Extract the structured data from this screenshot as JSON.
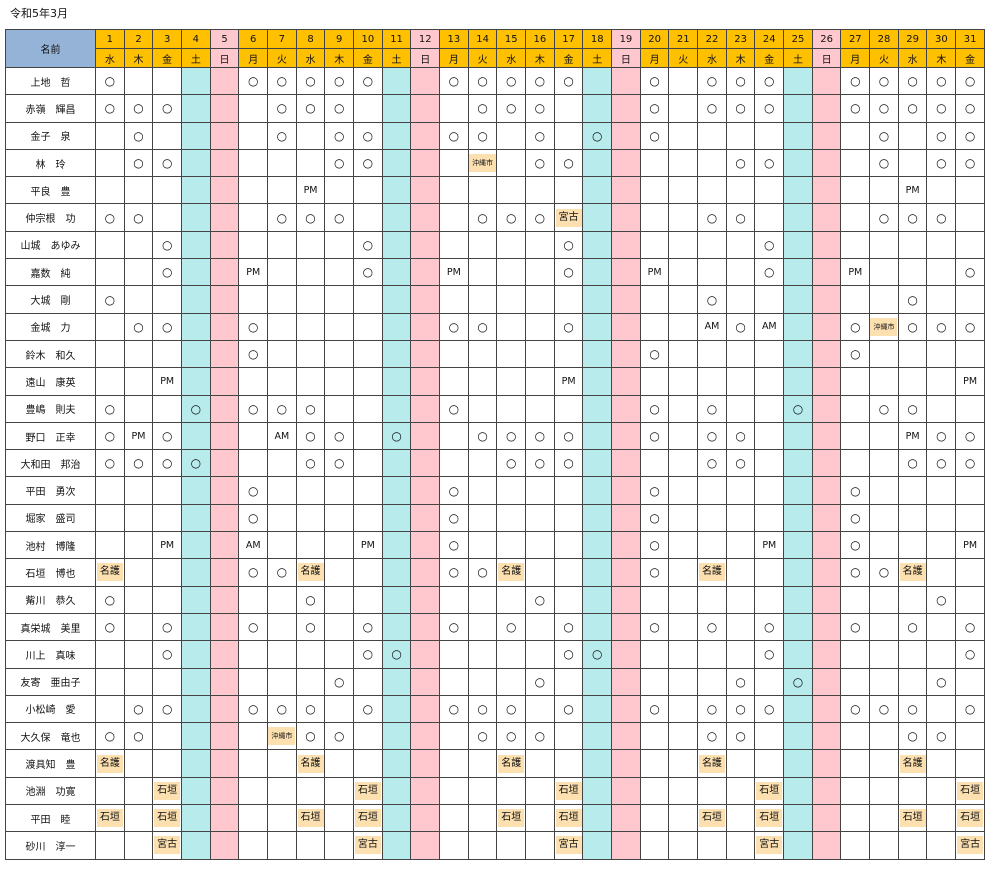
{
  "title": "令和5年3月",
  "name_header": "名前",
  "days": [
    "1",
    "2",
    "3",
    "4",
    "5",
    "6",
    "7",
    "8",
    "9",
    "10",
    "11",
    "12",
    "13",
    "14",
    "15",
    "16",
    "17",
    "18",
    "19",
    "20",
    "21",
    "22",
    "23",
    "24",
    "25",
    "26",
    "27",
    "28",
    "29",
    "30",
    "31"
  ],
  "weekdays": [
    "水",
    "木",
    "金",
    "土",
    "日",
    "月",
    "火",
    "水",
    "木",
    "金",
    "土",
    "日",
    "月",
    "火",
    "水",
    "木",
    "金",
    "土",
    "日",
    "月",
    "火",
    "水",
    "木",
    "金",
    "土",
    "日",
    "月",
    "火",
    "水",
    "木",
    "金"
  ],
  "colors": {
    "saturday": "#b7ebec",
    "sunday": "#ffc7ce",
    "header": "#ffc000",
    "name_header": "#95b3d7",
    "tag": "#fde0b0"
  },
  "rows": [
    {
      "name": "上地　哲",
      "cells": [
        "○",
        "",
        "",
        "",
        "",
        "○",
        "○",
        "○",
        "○",
        "○",
        "",
        "",
        "○",
        "○",
        "○",
        "○",
        "○",
        "",
        "",
        "○",
        "",
        "○",
        "○",
        "○",
        "",
        "",
        "○",
        "○",
        "○",
        "○",
        "○"
      ]
    },
    {
      "name": "赤嶺　輝昌",
      "cells": [
        "○",
        "○",
        "○",
        "",
        "",
        "",
        "○",
        "○",
        "○",
        "",
        "",
        "",
        "",
        "○",
        "○",
        "○",
        "",
        "",
        "",
        "○",
        "",
        "○",
        "○",
        "○",
        "",
        "",
        "○",
        "○",
        "○",
        "○",
        "○"
      ]
    },
    {
      "name": "金子　泉",
      "cells": [
        "",
        "○",
        "",
        "",
        "",
        "",
        "○",
        "",
        "○",
        "○",
        "",
        "",
        "○",
        "○",
        "",
        "○",
        "",
        "○",
        "",
        "○",
        "",
        "",
        "",
        "",
        "",
        "",
        "",
        "○",
        "",
        "○",
        "○"
      ]
    },
    {
      "name": "林　玲",
      "cells": [
        "",
        "○",
        "○",
        "",
        "",
        "",
        "",
        "",
        "○",
        "○",
        "",
        "",
        "",
        "沖縄市",
        "",
        "○",
        "○",
        "",
        "",
        "",
        "",
        "",
        "○",
        "○",
        "",
        "",
        "",
        "○",
        "",
        "○",
        "○"
      ]
    },
    {
      "name": "平良　豊",
      "cells": [
        "",
        "",
        "",
        "",
        "",
        "",
        "",
        "PM",
        "",
        "",
        "",
        "",
        "",
        "",
        "",
        "",
        "",
        "",
        "",
        "",
        "",
        "",
        "",
        "",
        "",
        "",
        "",
        "",
        "PM",
        "",
        ""
      ]
    },
    {
      "name": "仲宗根　功",
      "cells": [
        "○",
        "○",
        "",
        "",
        "",
        "",
        "○",
        "○",
        "○",
        "",
        "",
        "",
        "",
        "○",
        "○",
        "○",
        "宮古",
        "",
        "",
        "",
        "",
        "○",
        "○",
        "",
        "",
        "",
        "",
        "○",
        "○",
        "○",
        ""
      ]
    },
    {
      "name": "山城　あゆみ",
      "cells": [
        "",
        "",
        "○",
        "",
        "",
        "",
        "",
        "",
        "",
        "○",
        "",
        "",
        "",
        "",
        "",
        "",
        "○",
        "",
        "",
        "",
        "",
        "",
        "",
        "○",
        "",
        "",
        "",
        "",
        "",
        "",
        ""
      ]
    },
    {
      "name": "嘉数　純",
      "cells": [
        "",
        "",
        "○",
        "",
        "",
        "PM",
        "",
        "",
        "",
        "○",
        "",
        "",
        "PM",
        "",
        "",
        "",
        "○",
        "",
        "",
        "PM",
        "",
        "",
        "",
        "○",
        "",
        "",
        "PM",
        "",
        "",
        "",
        "○"
      ]
    },
    {
      "name": "大城　剛",
      "cells": [
        "○",
        "",
        "",
        "",
        "",
        "",
        "",
        "",
        "",
        "",
        "",
        "",
        "",
        "",
        "",
        "",
        "",
        "",
        "",
        "",
        "",
        "○",
        "",
        "",
        "",
        "",
        "",
        "",
        "○",
        "",
        ""
      ]
    },
    {
      "name": "金城　力",
      "cells": [
        "",
        "○",
        "○",
        "",
        "",
        "○",
        "",
        "",
        "",
        "",
        "",
        "",
        "○",
        "○",
        "",
        "",
        "○",
        "",
        "",
        "",
        "",
        "AM",
        "○",
        "AM",
        "",
        "",
        "○",
        "沖縄市",
        "○",
        "○",
        "○"
      ]
    },
    {
      "name": "鈴木　和久",
      "cells": [
        "",
        "",
        "",
        "",
        "",
        "○",
        "",
        "",
        "",
        "",
        "",
        "",
        "",
        "",
        "",
        "",
        "",
        "",
        "",
        "○",
        "",
        "",
        "",
        "",
        "",
        "",
        "○",
        "",
        "",
        "",
        ""
      ]
    },
    {
      "name": "遠山　康英",
      "cells": [
        "",
        "",
        "PM",
        "",
        "",
        "",
        "",
        "",
        "",
        "",
        "",
        "",
        "",
        "",
        "",
        "",
        "PM",
        "",
        "",
        "",
        "",
        "",
        "",
        "",
        "",
        "",
        "",
        "",
        "",
        "",
        "PM"
      ]
    },
    {
      "name": "豊嶋　則夫",
      "cells": [
        "○",
        "",
        "",
        "○",
        "",
        "○",
        "○",
        "○",
        "",
        "",
        "",
        "",
        "○",
        "",
        "",
        "",
        "",
        "",
        "",
        "○",
        "",
        "○",
        "",
        "",
        "○",
        "",
        "",
        "○",
        "○",
        "",
        ""
      ]
    },
    {
      "name": "野口　正幸",
      "cells": [
        "○",
        "PM",
        "○",
        "",
        "",
        "",
        "AM",
        "○",
        "○",
        "",
        "○",
        "",
        "",
        "○",
        "○",
        "○",
        "○",
        "",
        "",
        "○",
        "",
        "○",
        "○",
        "",
        "",
        "",
        "",
        "",
        "PM",
        "○",
        "○"
      ]
    },
    {
      "name": "大和田　邦治",
      "cells": [
        "○",
        "○",
        "○",
        "○",
        "",
        "",
        "",
        "○",
        "○",
        "",
        "",
        "",
        "",
        "",
        "○",
        "○",
        "○",
        "",
        "",
        "",
        "",
        "○",
        "○",
        "",
        "",
        "",
        "",
        "",
        "○",
        "○",
        "○"
      ]
    },
    {
      "name": "平田　勇次",
      "cells": [
        "",
        "",
        "",
        "",
        "",
        "○",
        "",
        "",
        "",
        "",
        "",
        "",
        "○",
        "",
        "",
        "",
        "",
        "",
        "",
        "○",
        "",
        "",
        "",
        "",
        "",
        "",
        "○",
        "",
        "",
        "",
        ""
      ]
    },
    {
      "name": "堀家　盛司",
      "cells": [
        "",
        "",
        "",
        "",
        "",
        "○",
        "",
        "",
        "",
        "",
        "",
        "",
        "○",
        "",
        "",
        "",
        "",
        "",
        "",
        "○",
        "",
        "",
        "",
        "",
        "",
        "",
        "○",
        "",
        "",
        "",
        ""
      ]
    },
    {
      "name": "池村　博隆",
      "cells": [
        "",
        "",
        "PM",
        "",
        "",
        "AM",
        "",
        "",
        "",
        "PM",
        "",
        "",
        "○",
        "",
        "",
        "",
        "",
        "",
        "",
        "○",
        "",
        "",
        "",
        "PM",
        "",
        "",
        "○",
        "",
        "",
        "",
        "PM"
      ]
    },
    {
      "name": "石垣　博也",
      "cells": [
        "名護",
        "",
        "",
        "",
        "",
        "○",
        "○",
        "名護",
        "",
        "",
        "",
        "",
        "○",
        "○",
        "名護",
        "",
        "",
        "",
        "",
        "○",
        "",
        "名護",
        "",
        "",
        "",
        "",
        "○",
        "○",
        "名護",
        "",
        ""
      ]
    },
    {
      "name": "觜川　恭久",
      "cells": [
        "○",
        "",
        "",
        "",
        "",
        "",
        "",
        "○",
        "",
        "",
        "",
        "",
        "",
        "",
        "",
        "○",
        "",
        "",
        "",
        "",
        "",
        "",
        "",
        "",
        "",
        "",
        "",
        "",
        "",
        "○",
        ""
      ]
    },
    {
      "name": "真栄城　美里",
      "cells": [
        "○",
        "",
        "○",
        "",
        "",
        "○",
        "",
        "○",
        "",
        "○",
        "",
        "",
        "○",
        "",
        "○",
        "",
        "○",
        "",
        "",
        "○",
        "",
        "○",
        "",
        "○",
        "",
        "",
        "○",
        "",
        "○",
        "",
        "○"
      ]
    },
    {
      "name": "川上　真味",
      "cells": [
        "",
        "",
        "○",
        "",
        "",
        "",
        "",
        "",
        "",
        "○",
        "○",
        "",
        "",
        "",
        "",
        "",
        "○",
        "○",
        "",
        "",
        "",
        "",
        "",
        "○",
        "",
        "",
        "",
        "",
        "",
        "",
        "○"
      ]
    },
    {
      "name": "友寄　亜由子",
      "cells": [
        "",
        "",
        "",
        "",
        "",
        "",
        "",
        "",
        "○",
        "",
        "",
        "",
        "",
        "",
        "",
        "○",
        "",
        "",
        "",
        "",
        "",
        "",
        "○",
        "",
        "○",
        "",
        "",
        "",
        "",
        "○",
        ""
      ]
    },
    {
      "name": "小松崎　愛",
      "cells": [
        "",
        "○",
        "○",
        "",
        "",
        "○",
        "○",
        "○",
        "",
        "○",
        "",
        "",
        "○",
        "○",
        "○",
        "",
        "○",
        "",
        "",
        "○",
        "",
        "○",
        "○",
        "○",
        "",
        "",
        "○",
        "○",
        "○",
        "",
        "○"
      ]
    },
    {
      "name": "大久保　竜也",
      "cells": [
        "○",
        "○",
        "",
        "",
        "",
        "",
        "沖縄市",
        "○",
        "○",
        "",
        "",
        "",
        "",
        "○",
        "○",
        "○",
        "",
        "",
        "",
        "",
        "",
        "○",
        "○",
        "",
        "",
        "",
        "",
        "",
        "○",
        "○",
        ""
      ]
    },
    {
      "name": "渡具知　豊",
      "cells": [
        "名護",
        "",
        "",
        "",
        "",
        "",
        "",
        "名護",
        "",
        "",
        "",
        "",
        "",
        "",
        "名護",
        "",
        "",
        "",
        "",
        "",
        "",
        "名護",
        "",
        "",
        "",
        "",
        "",
        "",
        "名護",
        "",
        ""
      ]
    },
    {
      "name": "池淵　功寛",
      "cells": [
        "",
        "",
        "石垣",
        "",
        "",
        "",
        "",
        "",
        "",
        "石垣",
        "",
        "",
        "",
        "",
        "",
        "",
        "石垣",
        "",
        "",
        "",
        "",
        "",
        "",
        "石垣",
        "",
        "",
        "",
        "",
        "",
        "",
        "石垣"
      ]
    },
    {
      "name": "平田　睦",
      "cells": [
        "石垣",
        "",
        "石垣",
        "",
        "",
        "",
        "",
        "石垣",
        "",
        "石垣",
        "",
        "",
        "",
        "",
        "石垣",
        "",
        "石垣",
        "",
        "",
        "",
        "",
        "石垣",
        "",
        "石垣",
        "",
        "",
        "",
        "",
        "石垣",
        "",
        "石垣"
      ]
    },
    {
      "name": "砂川　淳一",
      "cells": [
        "",
        "",
        "宮古",
        "",
        "",
        "",
        "",
        "",
        "",
        "宮古",
        "",
        "",
        "",
        "",
        "",
        "",
        "宮古",
        "",
        "",
        "",
        "",
        "",
        "",
        "宮古",
        "",
        "",
        "",
        "",
        "",
        "",
        "宮古"
      ]
    }
  ]
}
